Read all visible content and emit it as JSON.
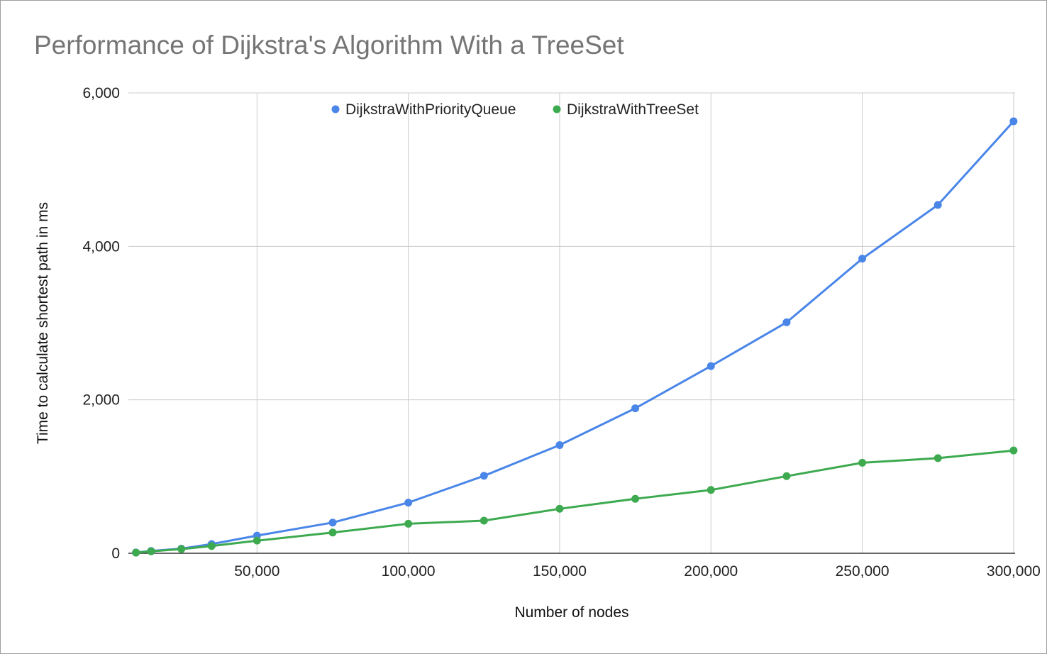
{
  "chart_data": {
    "type": "line",
    "title": "Performance of Dijkstra's Algorithm With a TreeSet",
    "xlabel": "Number of nodes",
    "ylabel": "Time to calculate shortest path in ms",
    "xlim": [
      7500,
      300500
    ],
    "ylim": [
      0,
      6000
    ],
    "x_ticks": [
      50000,
      100000,
      150000,
      200000,
      250000,
      300000
    ],
    "x_tick_labels": [
      "50,000",
      "100,000",
      "150,000",
      "200,000",
      "250,000",
      "300,000"
    ],
    "y_ticks": [
      0,
      2000,
      4000,
      6000
    ],
    "y_tick_labels": [
      "0",
      "2,000",
      "4,000",
      "6,000"
    ],
    "grid": true,
    "legend_position": "top",
    "x": [
      10000,
      15000,
      25000,
      35000,
      50000,
      75000,
      100000,
      125000,
      150000,
      175000,
      200000,
      225000,
      250000,
      275000,
      300000
    ],
    "series": [
      {
        "name": "DijkstraWithPriorityQueue",
        "color": "#4a86e8",
        "values": [
          10,
          30,
          60,
          120,
          230,
          400,
          660,
          1010,
          1410,
          1890,
          2440,
          3010,
          3840,
          4540,
          5630
        ]
      },
      {
        "name": "DijkstraWithTreeSet",
        "color": "#3daa4f",
        "values": [
          8,
          25,
          55,
          95,
          165,
          270,
          385,
          425,
          580,
          710,
          825,
          1005,
          1180,
          1240,
          1340
        ]
      }
    ]
  }
}
